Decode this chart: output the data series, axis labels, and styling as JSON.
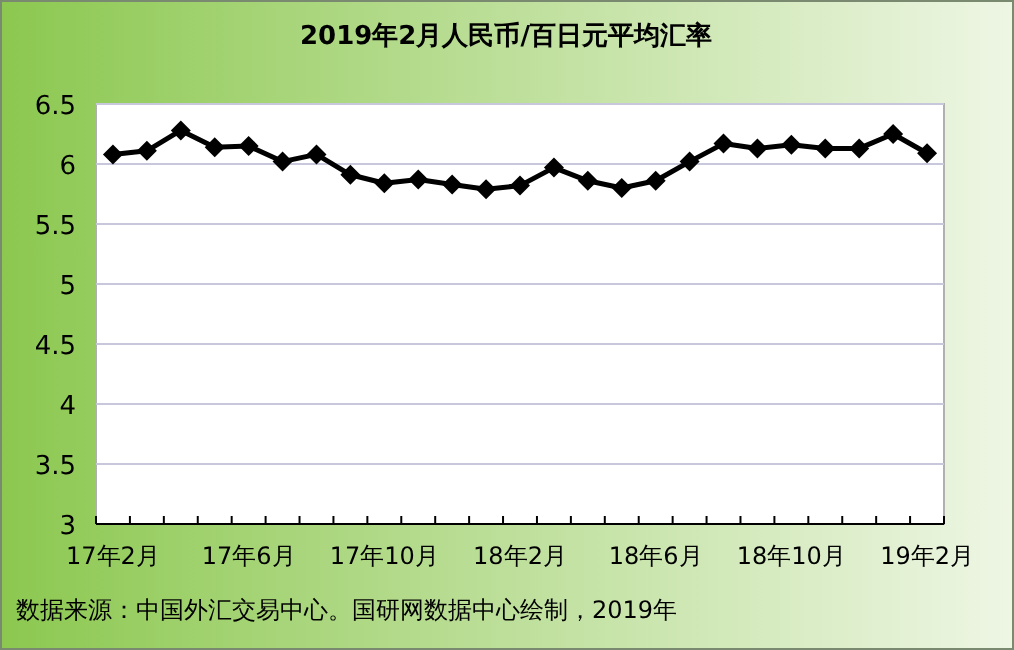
{
  "chart_data": {
    "type": "line",
    "title": "2019年2月人民币/百日元平均汇率",
    "categories": [
      "17年2月",
      null,
      null,
      null,
      "17年6月",
      null,
      null,
      null,
      "17年10月",
      null,
      null,
      null,
      "18年2月",
      null,
      null,
      null,
      "18年6月",
      null,
      null,
      null,
      "18年10月",
      null,
      null,
      null,
      "19年2月"
    ],
    "values": [
      6.08,
      6.11,
      6.28,
      6.14,
      6.15,
      6.02,
      6.08,
      5.91,
      5.84,
      5.87,
      5.83,
      5.79,
      5.82,
      5.97,
      5.86,
      5.8,
      5.86,
      6.02,
      6.17,
      6.13,
      6.16,
      6.13,
      6.13,
      6.25,
      6.09
    ],
    "color": "#000000",
    "marker": "diamond",
    "line_style": "solid",
    "ylim": [
      3,
      6.5
    ],
    "yticks": [
      3,
      3.5,
      4,
      4.5,
      5,
      5.5,
      6,
      6.5
    ],
    "grid": "y",
    "annotations": [
      "数据来源：中国外汇交易中心。国研网数据中心绘制，2019年"
    ]
  }
}
